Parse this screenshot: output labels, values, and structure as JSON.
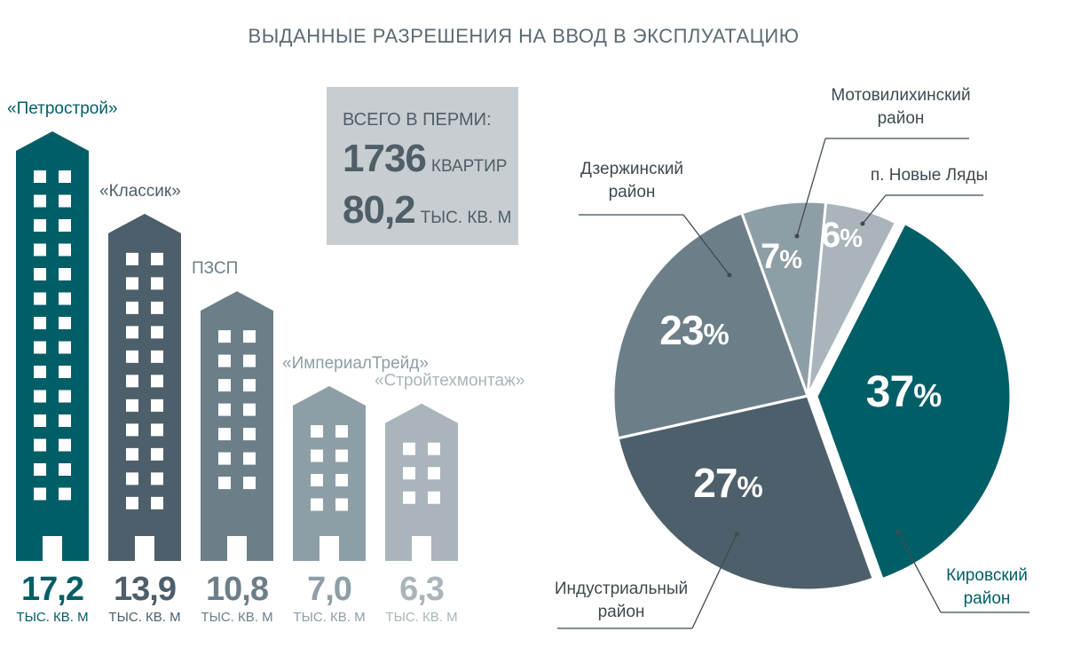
{
  "title": "ВЫДАННЫЕ РАЗРЕШЕНИЯ НА ВВОД В ЭКСПЛУАТАЦИЮ",
  "totals": {
    "caption": "ВСЕГО В ПЕРМИ:",
    "apartments_value": "1736",
    "apartments_unit": "КВАРТИР",
    "area_value": "80,2",
    "area_unit": "ТЫС. КВ. М"
  },
  "chart_data": [
    {
      "type": "bar",
      "categories": [
        "«Петрострой»",
        "«Классик»",
        "ПЗСП",
        "«ИмпериалТрейд»",
        "«Стройтехмонтаж»"
      ],
      "values": [
        17.2,
        13.9,
        10.8,
        7.0,
        6.3
      ],
      "value_labels": [
        "17,2",
        "13,9",
        "10,8",
        "7,0",
        "6,3"
      ],
      "unit_label": "ТЫС. КВ. М",
      "colors": [
        "#005e67",
        "#4d5f6a",
        "#6c7f89",
        "#8e9ea6",
        "#a9b5bb"
      ]
    },
    {
      "type": "pie",
      "labels": [
        "Кировский район",
        "Индустриальный район",
        "Дзержинский район",
        "Мотовилихинский район",
        "п. Новые Ляды"
      ],
      "label_lines": [
        [
          "Кировский",
          "район"
        ],
        [
          "Индустриальный",
          "район"
        ],
        [
          "Дзержинский",
          "район"
        ],
        [
          "Мотовилихинский",
          "район"
        ],
        [
          "п. Новые Ляды"
        ]
      ],
      "values": [
        37,
        27,
        23,
        7,
        6
      ],
      "value_labels": [
        "37",
        "27",
        "23",
        "7",
        "6"
      ],
      "percent_sign": "%",
      "exploded": [
        "Кировский район"
      ],
      "colors": [
        "#005e67",
        "#4d5f6a",
        "#6c7f89",
        "#8e9ea6",
        "#a9b5bb"
      ]
    }
  ]
}
